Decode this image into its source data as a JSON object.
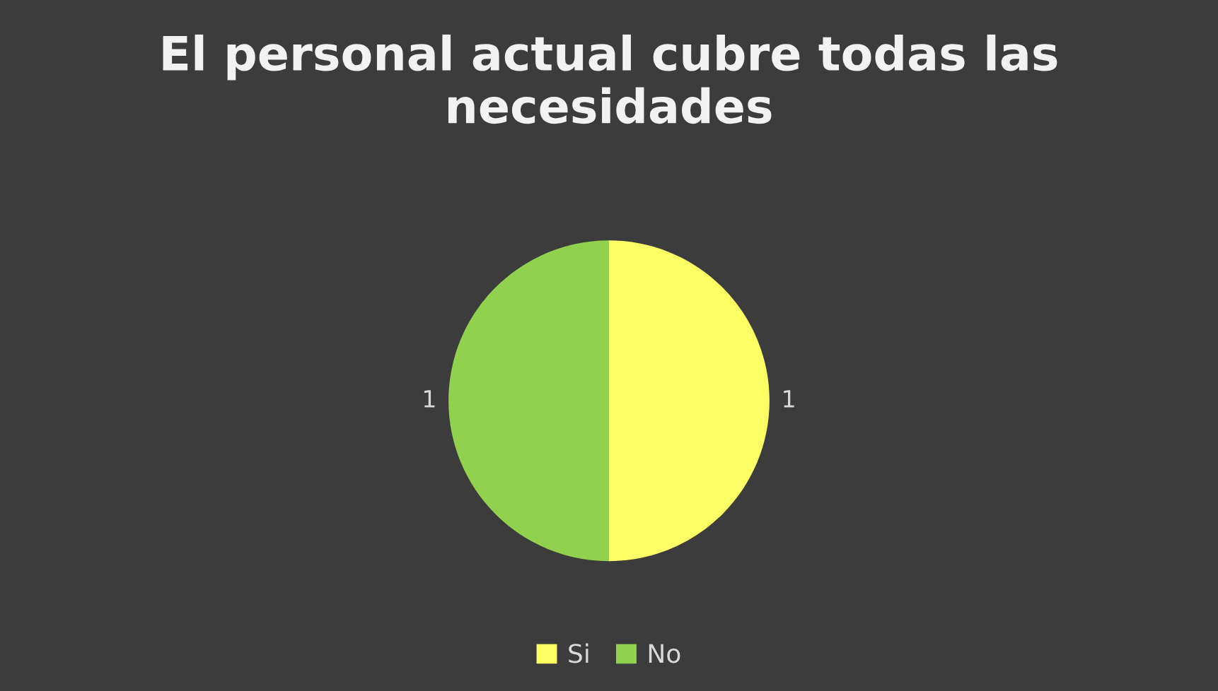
{
  "chart_data": {
    "type": "pie",
    "title": "El personal actual cubre todas las necesidades",
    "categories": [
      "Si",
      "No"
    ],
    "values": [
      1,
      1
    ],
    "colors": [
      "#ffff66",
      "#92d050"
    ],
    "data_labels": true,
    "legend": "bottom"
  }
}
